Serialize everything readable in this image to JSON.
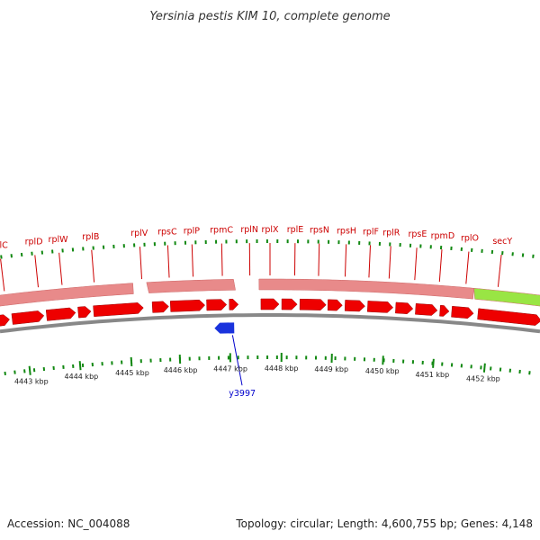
{
  "title": "Yersinia pestis KIM 10, complete genome",
  "footer": {
    "accession": "Accession: NC_004088",
    "summary": "Topology: circular; Length: 4,600,755 bp; Genes: 4,148"
  },
  "colors": {
    "cds": "#ee0000",
    "cds_feature_band": "#e88a8a",
    "highlight_feature": "#99e544",
    "minus_strand_gene": "#1a33dd",
    "tick": "#118811",
    "backbone": "#888888",
    "label": "#cc0000",
    "minus_label": "#0000cc"
  },
  "genes": [
    "rplC",
    "rplD",
    "rplW",
    "rplB",
    "rplV",
    "rpsC",
    "rplP",
    "rpmC",
    "rplN",
    "rplX",
    "rplE",
    "rpsN",
    "rpsH",
    "rplF",
    "rplR",
    "rpsE",
    "rpmD",
    "rplO",
    "secY"
  ],
  "minus_genes": [
    "y3997"
  ],
  "kbp_ticks": [
    "4443 kbp",
    "4444 kbp",
    "4445 kbp",
    "4446 kbp",
    "4447 kbp",
    "4448 kbp",
    "4449 kbp",
    "4450 kbp",
    "4451 kbp",
    "4452 kbp"
  ]
}
